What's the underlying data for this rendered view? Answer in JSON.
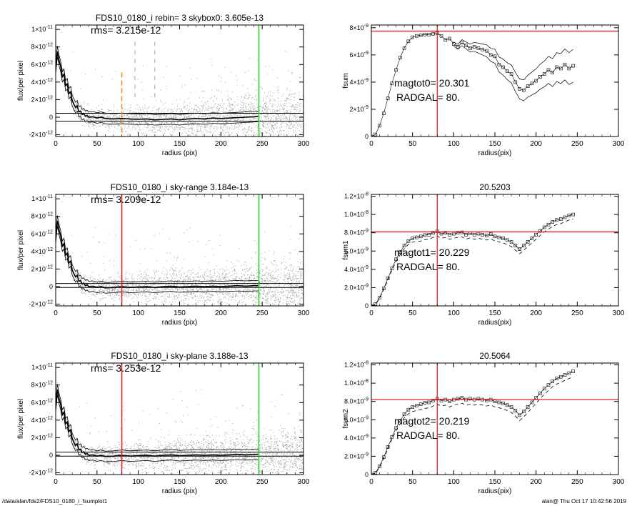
{
  "footer": {
    "path": "/data/alan/fds2/FDS10_0180_i_fsumplot1",
    "user_date": "alan@  Thu Oct 17 10:42:56 2019"
  },
  "colors": {
    "axis": "#000000",
    "scatter": "#a0a0a0",
    "profile": "#000000",
    "red_line": "#e02020",
    "green_line": "#22cc22",
    "orange_line": "#f08a20",
    "gray_dashed": "#909090"
  },
  "chart_data": [
    {
      "id": "profile-1",
      "type": "scatter",
      "title": "FDS10_0180_i rebin= 3    skybox0:  3.605e-13",
      "annotations": [
        "rms= 3.215e-12"
      ],
      "xlabel": "radius (pix)",
      "ylabel": "flux/per pixel",
      "xlim": [
        0,
        300
      ],
      "ylim": [
        -2.2e-12,
        1.05e-11
      ],
      "xticks": [
        0,
        50,
        100,
        150,
        200,
        250,
        300
      ],
      "yticks": [
        -2e-12,
        0,
        2e-12,
        4e-12,
        6e-12,
        8e-12,
        1e-11
      ],
      "ytick_labels": [
        [
          "-2×10",
          "-12"
        ],
        [
          "0",
          ""
        ],
        [
          "2×10",
          "-12"
        ],
        [
          "4×10",
          "-12"
        ],
        [
          "6×10",
          "-12"
        ],
        [
          "8×10",
          "-12"
        ],
        [
          "1×10",
          "-11"
        ]
      ],
      "profile_x": [
        0,
        2,
        4,
        6,
        8,
        10,
        12,
        14,
        16,
        18,
        20,
        22,
        24,
        26,
        28,
        30,
        32,
        34,
        36,
        38,
        40,
        45,
        50,
        55,
        60,
        70,
        80,
        90,
        100,
        110,
        120,
        130,
        140,
        150,
        160,
        170,
        180,
        190,
        200,
        210,
        220,
        230,
        240,
        245
      ],
      "profile_y": [
        5.5e-12,
        7.5e-12,
        6.5e-12,
        5.8e-12,
        4.6e-12,
        4.9e-12,
        3.6e-12,
        3.8e-12,
        2.7e-12,
        2.9e-12,
        1.9e-12,
        1.5e-12,
        1.1e-12,
        1.3e-12,
        6e-13,
        7e-13,
        3e-13,
        4e-13,
        1e-13,
        2e-13,
        0.0,
        5e-14,
        -1e-13,
        0.0,
        -1.5e-13,
        -2e-13,
        -1.5e-13,
        -2e-13,
        -2.5e-13,
        -2e-13,
        -3e-13,
        -2.5e-13,
        -2e-13,
        -3e-13,
        -2e-13,
        -1.5e-13,
        -2e-13,
        -1e-13,
        -1.5e-13,
        -1e-13,
        -5e-14,
        0.0,
        5e-14,
        1e-13
      ],
      "hlines": [
        4.5e-13,
        -4.5e-13
      ],
      "vlines": [
        {
          "x": 80,
          "style": "orange-dashed"
        },
        {
          "x": 96,
          "style": "gray-dashed"
        },
        {
          "x": 120,
          "style": "gray-dashed"
        },
        {
          "x": 246,
          "style": "green"
        }
      ]
    },
    {
      "id": "fsum-1",
      "type": "line",
      "title": "",
      "annotations": [
        "magtot0=  20.301",
        "RADGAL=     80."
      ],
      "xlabel": "radius(pix)",
      "ylabel": "fsum",
      "xlim": [
        0,
        300
      ],
      "ylim": [
        0,
        8.2e-09
      ],
      "xticks": [
        0,
        50,
        100,
        150,
        200,
        250,
        300
      ],
      "yticks": [
        0,
        2e-09,
        4e-09,
        6e-09,
        8e-09
      ],
      "ytick_labels": [
        [
          "0",
          ""
        ],
        [
          "2×10",
          "-9"
        ],
        [
          "4×10",
          "-9"
        ],
        [
          "6×10",
          "-9"
        ],
        [
          "8×10",
          "-9"
        ]
      ],
      "x": [
        0,
        5,
        10,
        15,
        20,
        25,
        30,
        35,
        40,
        45,
        50,
        55,
        60,
        65,
        70,
        75,
        80,
        85,
        90,
        95,
        100,
        105,
        110,
        115,
        120,
        125,
        130,
        135,
        140,
        145,
        150,
        155,
        160,
        165,
        170,
        175,
        180,
        185,
        190,
        195,
        200,
        205,
        210,
        215,
        220,
        225,
        230,
        235,
        240,
        245
      ],
      "y": [
        0,
        1.5e-10,
        8e-10,
        1.7e-09,
        2.8e-09,
        3.9e-09,
        4.9e-09,
        5.8e-09,
        6.5e-09,
        7e-09,
        7.3e-09,
        7.4e-09,
        7.45e-09,
        7.5e-09,
        7.5e-09,
        7.55e-09,
        7.6e-09,
        7.4e-09,
        7.1e-09,
        7.2e-09,
        6.8e-09,
        6.6e-09,
        6.9e-09,
        6.7e-09,
        6.5e-09,
        6.6e-09,
        6.5e-09,
        6.4e-09,
        6.3e-09,
        6e-09,
        5.9e-09,
        5.3e-09,
        5.1e-09,
        4.8e-09,
        4.6e-09,
        4e-09,
        3.5e-09,
        3.4e-09,
        3.7e-09,
        3.9e-09,
        4.1e-09,
        4.4e-09,
        4.6e-09,
        4.9e-09,
        4.7e-09,
        5.1e-09,
        5e-09,
        5.3e-09,
        5e-09,
        5.2e-09
      ],
      "upper_offset": 1.1e-09,
      "lower_offset": 1.1e-09,
      "band_start": 100,
      "hline": 7.75e-09,
      "vline": 80
    },
    {
      "id": "profile-2",
      "type": "scatter",
      "title": "FDS10_0180_i sky-range  3.184e-13",
      "annotations": [
        "rms= 3.209e-12"
      ],
      "xlabel": "radius (pix)",
      "ylabel": "flux/per pixel",
      "xlim": [
        0,
        300
      ],
      "ylim": [
        -2.2e-12,
        1.05e-11
      ],
      "xticks": [
        0,
        50,
        100,
        150,
        200,
        250,
        300
      ],
      "yticks": [
        -2e-12,
        0,
        2e-12,
        4e-12,
        6e-12,
        8e-12,
        1e-11
      ],
      "ytick_labels": [
        [
          "-2×10",
          "-12"
        ],
        [
          "0",
          ""
        ],
        [
          "2×10",
          "-12"
        ],
        [
          "4×10",
          "-12"
        ],
        [
          "6×10",
          "-12"
        ],
        [
          "8×10",
          "-12"
        ],
        [
          "1×10",
          "-11"
        ]
      ],
      "profile_x": [
        0,
        2,
        4,
        6,
        8,
        10,
        12,
        14,
        16,
        18,
        20,
        22,
        24,
        26,
        28,
        30,
        32,
        34,
        36,
        38,
        40,
        45,
        50,
        55,
        60,
        70,
        80,
        90,
        100,
        110,
        120,
        130,
        140,
        150,
        160,
        170,
        180,
        190,
        200,
        210,
        220,
        230,
        240,
        245
      ],
      "profile_y": [
        5.5e-12,
        7.5e-12,
        6.5e-12,
        5.8e-12,
        4.6e-12,
        4.9e-12,
        3.6e-12,
        3.8e-12,
        2.7e-12,
        2.9e-12,
        1.9e-12,
        1.5e-12,
        1.1e-12,
        1.3e-12,
        6e-13,
        7e-13,
        3e-13,
        4e-13,
        1e-13,
        2e-13,
        0.0,
        5e-14,
        -1e-13,
        0.0,
        -1.5e-13,
        -1e-13,
        0.0,
        -1e-13,
        -5e-14,
        0.0,
        -1e-13,
        0.0,
        5e-14,
        -5e-14,
        0.0,
        5e-14,
        0.0,
        5e-14,
        0.0,
        5e-14,
        1e-13,
        5e-14,
        1e-13,
        1e-13
      ],
      "hlines": [
        3.5e-13,
        -1e-13
      ],
      "vlines": [
        {
          "x": 80,
          "style": "red"
        },
        {
          "x": 246,
          "style": "green"
        }
      ]
    },
    {
      "id": "fsum-2",
      "type": "line",
      "title": "20.5203",
      "annotations": [
        "magtot1=  20.229",
        "RADGAL=     80."
      ],
      "xlabel": "radius(pix)",
      "ylabel": "fsum1",
      "xlim": [
        0,
        300
      ],
      "ylim": [
        0,
        1.22e-08
      ],
      "xticks": [
        0,
        50,
        100,
        150,
        200,
        250,
        300
      ],
      "yticks": [
        0,
        2e-09,
        4e-09,
        6e-09,
        8e-09,
        1e-08,
        1.2e-08
      ],
      "ytick_labels": [
        [
          "0",
          ""
        ],
        [
          "2.0×10",
          "-9"
        ],
        [
          "4.0×10",
          "-9"
        ],
        [
          "6.0×10",
          "-9"
        ],
        [
          "8.0×10",
          "-9"
        ],
        [
          "1.0×10",
          "-8"
        ],
        [
          "1.2×10",
          "-8"
        ]
      ],
      "x": [
        0,
        5,
        10,
        15,
        20,
        25,
        30,
        35,
        40,
        45,
        50,
        55,
        60,
        65,
        70,
        75,
        80,
        85,
        90,
        95,
        100,
        105,
        110,
        115,
        120,
        125,
        130,
        135,
        140,
        145,
        150,
        155,
        160,
        165,
        170,
        175,
        180,
        185,
        190,
        195,
        200,
        205,
        210,
        215,
        220,
        225,
        230,
        235,
        240,
        245
      ],
      "y": [
        0,
        2e-10,
        9e-10,
        1.9e-09,
        3e-09,
        4.1e-09,
        5.1e-09,
        5.9e-09,
        6.6e-09,
        7.1e-09,
        7.4e-09,
        7.5e-09,
        7.6e-09,
        7.75e-09,
        7.8e-09,
        8e-09,
        8.15e-09,
        7.9e-09,
        8e-09,
        7.8e-09,
        7.9e-09,
        8e-09,
        8.05e-09,
        7.8e-09,
        7.95e-09,
        7.8e-09,
        7.9e-09,
        7.8e-09,
        7.7e-09,
        7.85e-09,
        7.6e-09,
        7.5e-09,
        7.4e-09,
        7.2e-09,
        7e-09,
        6.6e-09,
        6.2e-09,
        6.6e-09,
        7e-09,
        7.4e-09,
        7.8e-09,
        8.2e-09,
        8.6e-09,
        8.9e-09,
        9.2e-09,
        9.4e-09,
        9.5e-09,
        9.7e-09,
        9.9e-09,
        1e-08
      ],
      "lower_offset": 5e-10,
      "hline": 8.1e-09,
      "vline": 80
    },
    {
      "id": "profile-3",
      "type": "scatter",
      "title": "FDS10_0180_i sky-plane  3.188e-13",
      "annotations": [
        "rms= 3.253e-12"
      ],
      "xlabel": "radius (pix)",
      "ylabel": "flux/per pixel",
      "xlim": [
        0,
        300
      ],
      "ylim": [
        -2.2e-12,
        1.05e-11
      ],
      "xticks": [
        0,
        50,
        100,
        150,
        200,
        250,
        300
      ],
      "yticks": [
        -2e-12,
        0,
        2e-12,
        4e-12,
        6e-12,
        8e-12,
        1e-11
      ],
      "ytick_labels": [
        [
          "-2×10",
          "-12"
        ],
        [
          "0",
          ""
        ],
        [
          "2×10",
          "-12"
        ],
        [
          "4×10",
          "-12"
        ],
        [
          "6×10",
          "-12"
        ],
        [
          "8×10",
          "-12"
        ],
        [
          "1×10",
          "-11"
        ]
      ],
      "profile_x": [
        0,
        2,
        4,
        6,
        8,
        10,
        12,
        14,
        16,
        18,
        20,
        22,
        24,
        26,
        28,
        30,
        32,
        34,
        36,
        38,
        40,
        45,
        50,
        55,
        60,
        70,
        80,
        90,
        100,
        110,
        120,
        130,
        140,
        150,
        160,
        170,
        180,
        190,
        200,
        210,
        220,
        230,
        240,
        245
      ],
      "profile_y": [
        5.5e-12,
        7.5e-12,
        6.5e-12,
        5.8e-12,
        4.6e-12,
        4.9e-12,
        3.6e-12,
        3.8e-12,
        2.7e-12,
        2.9e-12,
        1.9e-12,
        1.5e-12,
        1.1e-12,
        1.3e-12,
        6e-13,
        7e-13,
        3e-13,
        4e-13,
        1e-13,
        2e-13,
        0.0,
        5e-14,
        -1e-13,
        0.0,
        -1.5e-13,
        -1e-13,
        0.0,
        -1e-13,
        -5e-14,
        0.0,
        -1e-13,
        0.0,
        5e-14,
        -5e-14,
        0.0,
        5e-14,
        0.0,
        5e-14,
        0.0,
        5e-14,
        1e-13,
        5e-14,
        1e-13,
        1e-13
      ],
      "hlines": [
        3.5e-13,
        -1e-13
      ],
      "vlines": [
        {
          "x": 80,
          "style": "red"
        },
        {
          "x": 246,
          "style": "green"
        }
      ]
    },
    {
      "id": "fsum-3",
      "type": "line",
      "title": "20.5064",
      "annotations": [
        "magtot2=  20.219",
        "RADGAL=     80."
      ],
      "xlabel": "radius(pix)",
      "ylabel": "fsum2",
      "xlim": [
        0,
        300
      ],
      "ylim": [
        0,
        1.22e-08
      ],
      "xticks": [
        0,
        50,
        100,
        150,
        200,
        250,
        300
      ],
      "yticks": [
        0,
        2e-09,
        4e-09,
        6e-09,
        8e-09,
        1e-08,
        1.2e-08
      ],
      "ytick_labels": [
        [
          "0",
          ""
        ],
        [
          "2.0×10",
          "-9"
        ],
        [
          "4.0×10",
          "-9"
        ],
        [
          "6.0×10",
          "-9"
        ],
        [
          "8.0×10",
          "-9"
        ],
        [
          "1.0×10",
          "-8"
        ],
        [
          "1.2×10",
          "-8"
        ]
      ],
      "x": [
        0,
        5,
        10,
        15,
        20,
        25,
        30,
        35,
        40,
        45,
        50,
        55,
        60,
        65,
        70,
        75,
        80,
        85,
        90,
        95,
        100,
        105,
        110,
        115,
        120,
        125,
        130,
        135,
        140,
        145,
        150,
        155,
        160,
        165,
        170,
        175,
        180,
        185,
        190,
        195,
        200,
        205,
        210,
        215,
        220,
        225,
        230,
        235,
        240,
        245
      ],
      "y": [
        0,
        2e-10,
        9e-10,
        1.9e-09,
        3e-09,
        4.1e-09,
        5.1e-09,
        5.9e-09,
        6.6e-09,
        7.1e-09,
        7.4e-09,
        7.55e-09,
        7.7e-09,
        7.85e-09,
        7.9e-09,
        8.1e-09,
        8.3e-09,
        8.1e-09,
        8.2e-09,
        8e-09,
        8.2e-09,
        8.3e-09,
        8.4e-09,
        8.2e-09,
        8.3e-09,
        8.2e-09,
        8.3e-09,
        8.2e-09,
        8.1e-09,
        8.2e-09,
        8e-09,
        7.9e-09,
        7.8e-09,
        7.6e-09,
        7.4e-09,
        7e-09,
        6.5e-09,
        6.9e-09,
        7.4e-09,
        7.9e-09,
        8.4e-09,
        8.9e-09,
        9.4e-09,
        9.8e-09,
        1.02e-08,
        1.05e-08,
        1.07e-08,
        1.09e-08,
        1.11e-08,
        1.13e-08
      ],
      "lower_offset": 6e-10,
      "hline": 8.2e-09,
      "vline": 80
    }
  ]
}
